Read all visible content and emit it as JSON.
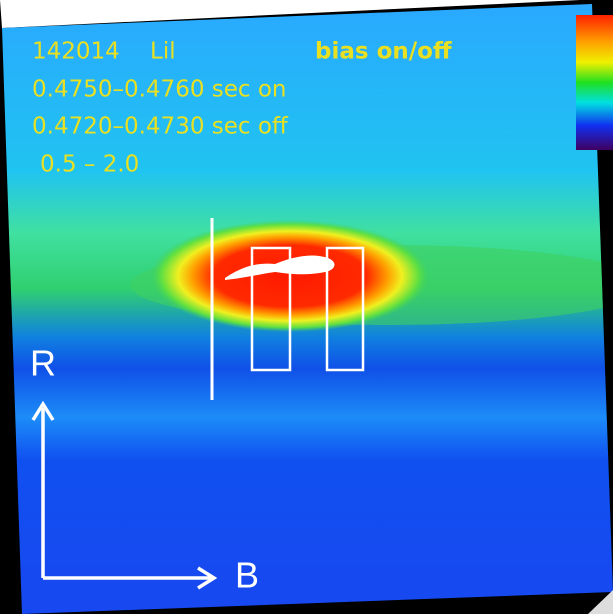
{
  "header": {
    "shot": "142014",
    "view": "Lil",
    "mode": "bias on/off"
  },
  "time_windows": [
    "0.4750–0.4760 sec on",
    "0.4720–0.4730 sec off"
  ],
  "range": "0.5 – 2.0",
  "axes": {
    "vertical": "R",
    "horizontal": "B"
  }
}
